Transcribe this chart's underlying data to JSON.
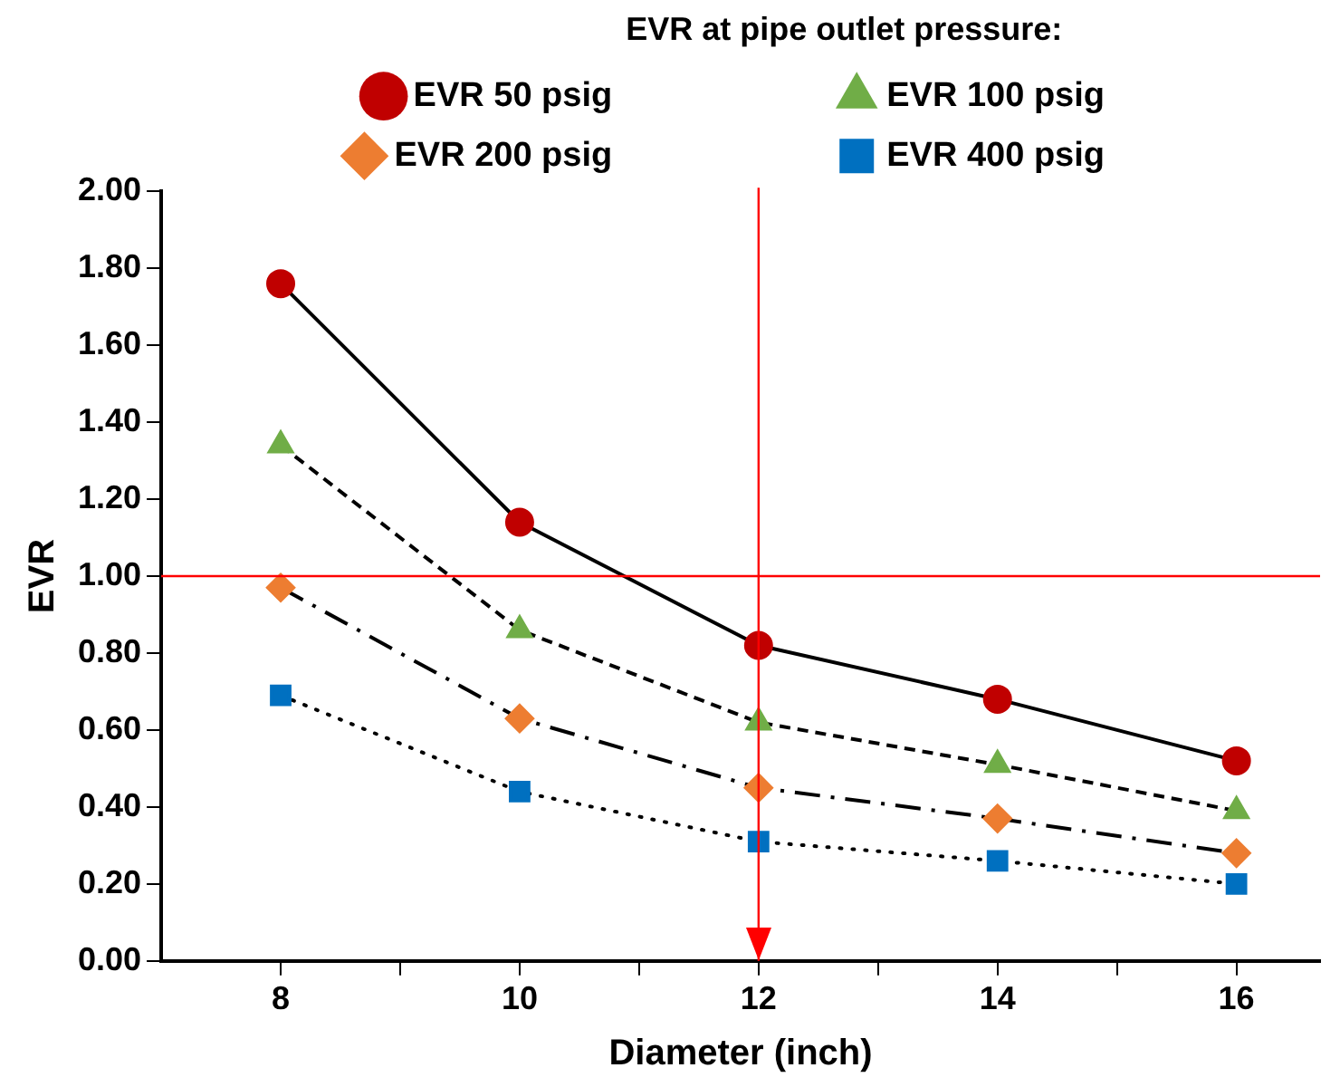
{
  "chart_data": {
    "type": "line",
    "legend_title": "EVR at pipe outlet pressure:",
    "xlabel": "Diameter (inch)",
    "ylabel": "EVR",
    "x": [
      8,
      10,
      12,
      14,
      16
    ],
    "series": [
      {
        "name": "EVR 50 psig",
        "color": "#c00000",
        "marker": "circle",
        "line_style": "solid",
        "values": [
          1.76,
          1.14,
          0.82,
          0.68,
          0.52
        ]
      },
      {
        "name": "EVR 100 psig",
        "color": "#70ad47",
        "marker": "triangle",
        "line_style": "dashed",
        "values": [
          1.34,
          0.86,
          0.62,
          0.51,
          0.39
        ]
      },
      {
        "name": "EVR 200 psig",
        "color": "#ed7d31",
        "marker": "diamond",
        "line_style": "dashdot",
        "values": [
          0.97,
          0.63,
          0.45,
          0.37,
          0.28
        ]
      },
      {
        "name": "EVR 400 psig",
        "color": "#0070c0",
        "marker": "square",
        "line_style": "dotted",
        "values": [
          0.69,
          0.44,
          0.31,
          0.26,
          0.2
        ]
      }
    ],
    "xlim": [
      7,
      16.7
    ],
    "xticks": [
      8,
      {
        "value": 9,
        "label": null
      },
      10,
      {
        "value": 11,
        "label": null
      },
      12,
      {
        "value": 13,
        "label": null
      },
      14,
      {
        "value": 15,
        "label": null
      },
      16
    ],
    "ylim": [
      0,
      2
    ],
    "yticks": [
      {
        "value": 0,
        "label": "0.00"
      },
      {
        "value": 0.2,
        "label": "0.20"
      },
      {
        "value": 0.4,
        "label": "0.40"
      },
      {
        "value": 0.6,
        "label": "0.60"
      },
      {
        "value": 0.8,
        "label": "0.80"
      },
      {
        "value": 1,
        "label": "1.00"
      },
      {
        "value": 1.2,
        "label": "1.20"
      },
      {
        "value": 1.4,
        "label": "1.40"
      },
      {
        "value": 1.6,
        "label": "1.60"
      },
      {
        "value": 1.8,
        "label": "1.80"
      },
      {
        "value": 2,
        "label": "2.00"
      }
    ],
    "ref_lines": [
      {
        "axis": "y",
        "value": 1,
        "color": "#ff0000"
      },
      {
        "axis": "x",
        "value": 12,
        "color": "#ff0000"
      }
    ],
    "grid": false,
    "legend": "top"
  }
}
